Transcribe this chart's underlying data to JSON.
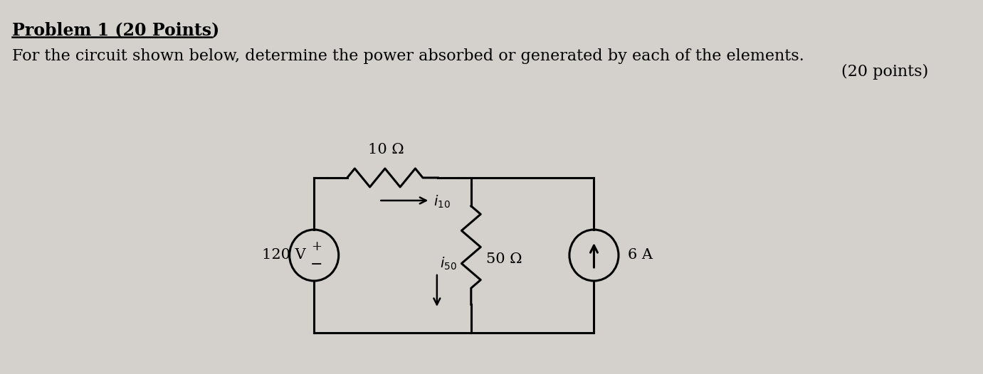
{
  "bg_color": "#d4d0cb",
  "title_text": "Problem 1 (20 Points)",
  "subtitle_text": "For the circuit shown below, determine the power absorbed or generated by each of the elements.",
  "points_text": "(20 points)",
  "voltage_source_label": "120 V",
  "resistor1_label": "10 Ω",
  "resistor2_label": "50 Ω",
  "current_source_label": "6 A",
  "current1_label": "i_{10}",
  "current2_label": "i_{50}"
}
